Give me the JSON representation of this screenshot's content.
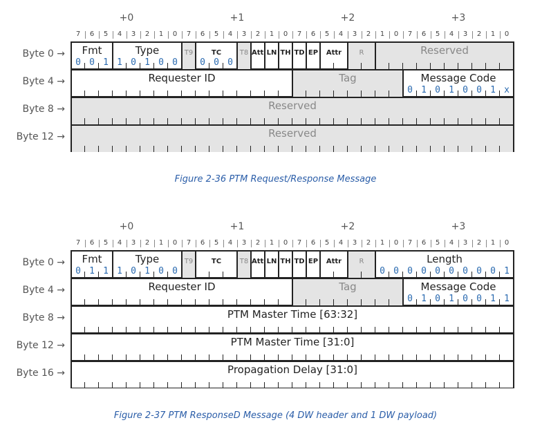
{
  "byte_headers": [
    "+0",
    "+1",
    "+2",
    "+3"
  ],
  "bit_numbers": [
    "7",
    "6",
    "5",
    "4",
    "3",
    "2",
    "1",
    "0"
  ],
  "figure1": {
    "rows": [
      "Byte 0 →",
      "Byte 4 →",
      "Byte 8 →",
      "Byte 12 →"
    ],
    "fields": {
      "fmt": {
        "label": "Fmt",
        "value": "001"
      },
      "type": {
        "label": "Type",
        "value": "10100"
      },
      "t9": {
        "label": "T9"
      },
      "tc": {
        "label": "TC",
        "value": "000"
      },
      "t8": {
        "label": "T8"
      },
      "attr_a": {
        "label": "Attr"
      },
      "ln": {
        "label": "LN"
      },
      "th": {
        "label": "TH"
      },
      "td": {
        "label": "TD"
      },
      "ep": {
        "label": "EP"
      },
      "attr_b": {
        "label": "Attr"
      },
      "r": {
        "label": "R"
      },
      "reserved0": {
        "label": "Reserved"
      },
      "requester_id": {
        "label": "Requester ID"
      },
      "tag": {
        "label": "Tag"
      },
      "message_code": {
        "label": "Message Code",
        "value": "0101001x"
      },
      "reserved8": {
        "label": "Reserved"
      },
      "reserved12": {
        "label": "Reserved"
      }
    },
    "caption": "Figure  2-36  PTM Request/Response Message"
  },
  "figure2": {
    "rows": [
      "Byte 0 →",
      "Byte 4 →",
      "Byte 8 →",
      "Byte 12 →",
      "Byte 16 →"
    ],
    "fields": {
      "fmt": {
        "label": "Fmt",
        "value": "011"
      },
      "type": {
        "label": "Type",
        "value": "10100"
      },
      "t9": {
        "label": "T9"
      },
      "tc": {
        "label": "TC"
      },
      "t8": {
        "label": "T8"
      },
      "attr_a": {
        "label": "Attr"
      },
      "ln": {
        "label": "LN"
      },
      "th": {
        "label": "TH"
      },
      "td": {
        "label": "TD"
      },
      "ep": {
        "label": "EP"
      },
      "attr_b": {
        "label": "Attr"
      },
      "r": {
        "label": "R"
      },
      "length": {
        "label": "Length",
        "value": "0000000001"
      },
      "requester_id": {
        "label": "Requester ID"
      },
      "tag": {
        "label": "Tag"
      },
      "message_code": {
        "label": "Message Code",
        "value": "01010011"
      },
      "master_hi": {
        "label": "PTM Master Time [63:32]"
      },
      "master_lo": {
        "label": "PTM Master Time [31:0]"
      },
      "prop_delay": {
        "label": "Propagation Delay [31:0]"
      }
    },
    "caption": "Figure  2-37  PTM ResponseD Message (4 DW header and 1 DW payload)"
  }
}
